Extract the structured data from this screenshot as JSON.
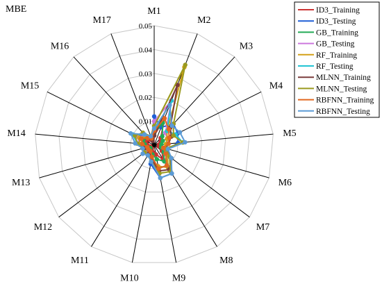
{
  "chart_data": {
    "type": "radar",
    "title": "MBE",
    "title_color": "#ff0000",
    "axes": [
      "M1",
      "M2",
      "M3",
      "M4",
      "M5",
      "M6",
      "M7",
      "M8",
      "M9",
      "M10",
      "M11",
      "M12",
      "M13",
      "M14",
      "M15",
      "M16",
      "M17"
    ],
    "r_ticks": [
      "0.01",
      "0.02",
      "0.03",
      "0.04",
      "0.05"
    ],
    "r_tick_values": [
      0.01,
      0.02,
      0.03,
      0.04,
      0.05
    ],
    "rlim": [
      0,
      0.05
    ],
    "grid": true,
    "legend_position": "top-right",
    "series": [
      {
        "name": "ID3_Training",
        "color": "#cc3333",
        "values": [
          0.004,
          0.012,
          0.004,
          0.003,
          0.002,
          0.002,
          0.004,
          0.007,
          0.004,
          0.003,
          0.002,
          0.001,
          0.002,
          0.003,
          0.004,
          0.003,
          0.002
        ]
      },
      {
        "name": "ID3_Testing",
        "color": "#1f5fd6",
        "values": [
          0.012,
          0.008,
          0.012,
          0.011,
          0.01,
          0.006,
          0.008,
          0.014,
          0.014,
          0.008,
          0.004,
          0.006,
          0.005,
          0.007,
          0.01,
          0.005,
          0.003
        ]
      },
      {
        "name": "GB_Training",
        "color": "#22aa55",
        "values": [
          0.005,
          0.01,
          0.005,
          0.004,
          0.003,
          0.003,
          0.005,
          0.008,
          0.006,
          0.004,
          0.003,
          0.002,
          0.003,
          0.004,
          0.005,
          0.004,
          0.003
        ]
      },
      {
        "name": "GB_Testing",
        "color": "#cc77dd",
        "values": [
          0.01,
          0.02,
          0.007,
          0.006,
          0.006,
          0.004,
          0.006,
          0.01,
          0.01,
          0.006,
          0.004,
          0.004,
          0.004,
          0.006,
          0.008,
          0.005,
          0.003
        ]
      },
      {
        "name": "RF_Training",
        "color": "#d4a017",
        "values": [
          0.008,
          0.035,
          0.008,
          0.006,
          0.005,
          0.004,
          0.007,
          0.011,
          0.009,
          0.006,
          0.004,
          0.003,
          0.004,
          0.006,
          0.007,
          0.005,
          0.004
        ]
      },
      {
        "name": "RF_Testing",
        "color": "#22c4d4",
        "values": [
          0.006,
          0.02,
          0.008,
          0.01,
          0.012,
          0.005,
          0.006,
          0.01,
          0.01,
          0.006,
          0.005,
          0.005,
          0.004,
          0.007,
          0.01,
          0.006,
          0.003
        ]
      },
      {
        "name": "MLNN_Training",
        "color": "#7a3b3b",
        "values": [
          0.004,
          0.027,
          0.01,
          0.008,
          0.006,
          0.005,
          0.009,
          0.012,
          0.011,
          0.006,
          0.004,
          0.003,
          0.004,
          0.005,
          0.006,
          0.004,
          0.002
        ]
      },
      {
        "name": "MLNN_Testing",
        "color": "#9a9a1f",
        "values": [
          0.008,
          0.036,
          0.012,
          0.009,
          0.012,
          0.005,
          0.008,
          0.013,
          0.012,
          0.007,
          0.005,
          0.005,
          0.005,
          0.007,
          0.009,
          0.007,
          0.004
        ]
      },
      {
        "name": "RBFNN_Training",
        "color": "#e2671f",
        "values": [
          0.006,
          0.012,
          0.009,
          0.007,
          0.006,
          0.004,
          0.006,
          0.01,
          0.01,
          0.005,
          0.003,
          0.003,
          0.003,
          0.005,
          0.006,
          0.004,
          0.003
        ]
      },
      {
        "name": "RBFNN_Testing",
        "color": "#5b9bd5",
        "values": [
          0.007,
          0.018,
          0.011,
          0.012,
          0.013,
          0.006,
          0.009,
          0.014,
          0.014,
          0.007,
          0.005,
          0.006,
          0.005,
          0.008,
          0.011,
          0.006,
          0.004
        ]
      }
    ]
  }
}
